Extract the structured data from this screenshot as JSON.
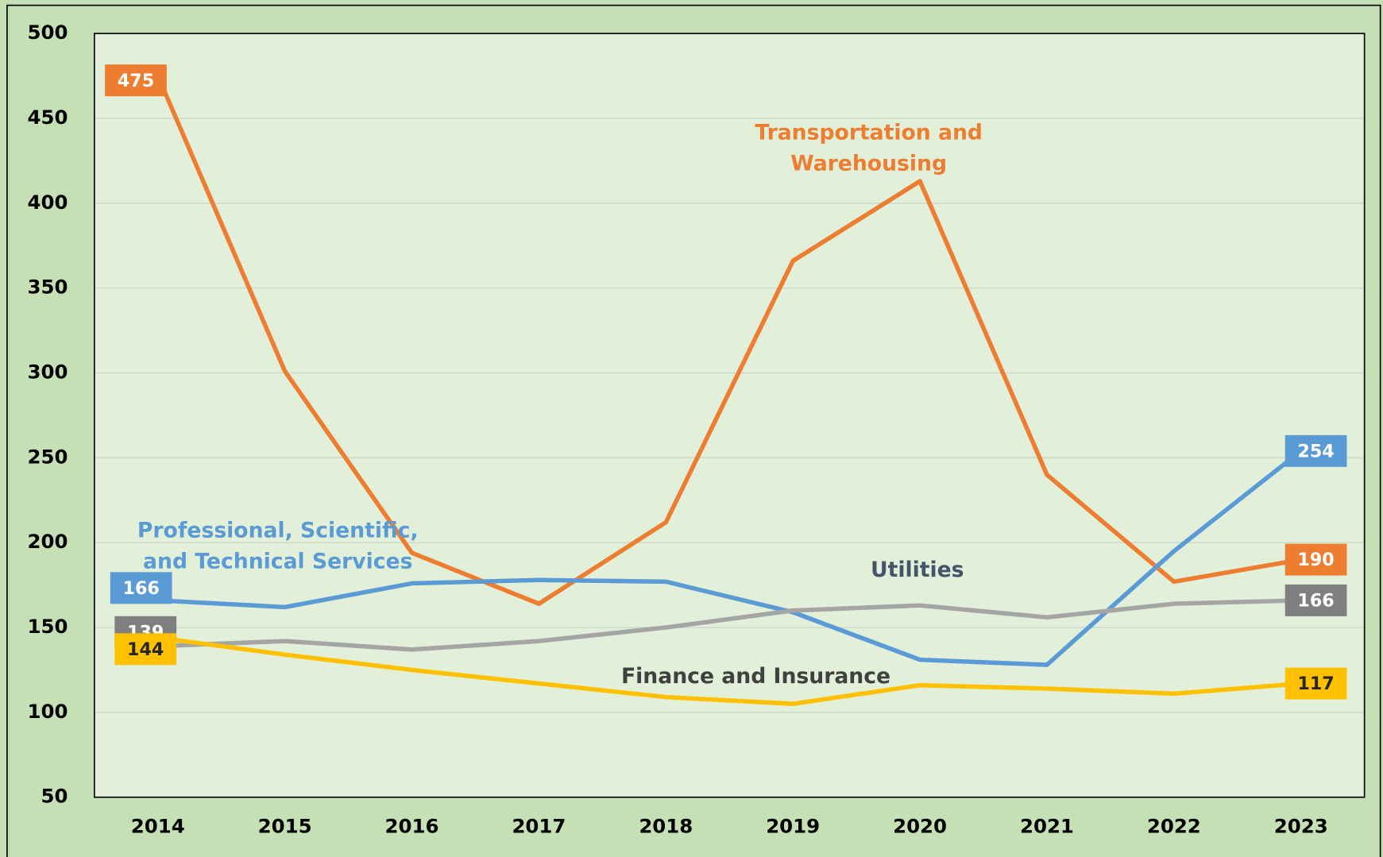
{
  "chart_data": {
    "type": "line",
    "categories": [
      "2014",
      "2015",
      "2016",
      "2017",
      "2018",
      "2019",
      "2020",
      "2021",
      "2022",
      "2023"
    ],
    "series": [
      {
        "name": "Transportation and Warehousing",
        "color": "#ed7d31",
        "values": [
          475,
          301,
          194,
          164,
          212,
          366,
          413,
          240,
          177,
          190
        ]
      },
      {
        "name": "Professional, Scientific, and Technical Services",
        "color": "#5b9bd5",
        "values": [
          166,
          162,
          176,
          178,
          177,
          159,
          131,
          128,
          195,
          254
        ]
      },
      {
        "name": "Utilities",
        "color": "#a5a5a5",
        "values": [
          139,
          142,
          137,
          142,
          150,
          160,
          163,
          156,
          164,
          166
        ]
      },
      {
        "name": "Finance and Insurance",
        "color": "#ffc000",
        "values": [
          144,
          134,
          125,
          117,
          109,
          105,
          116,
          114,
          111,
          117
        ]
      }
    ],
    "ylim": [
      50,
      500
    ],
    "yticks": [
      50,
      100,
      150,
      200,
      250,
      300,
      350,
      400,
      450,
      500
    ],
    "grid": true
  }
}
